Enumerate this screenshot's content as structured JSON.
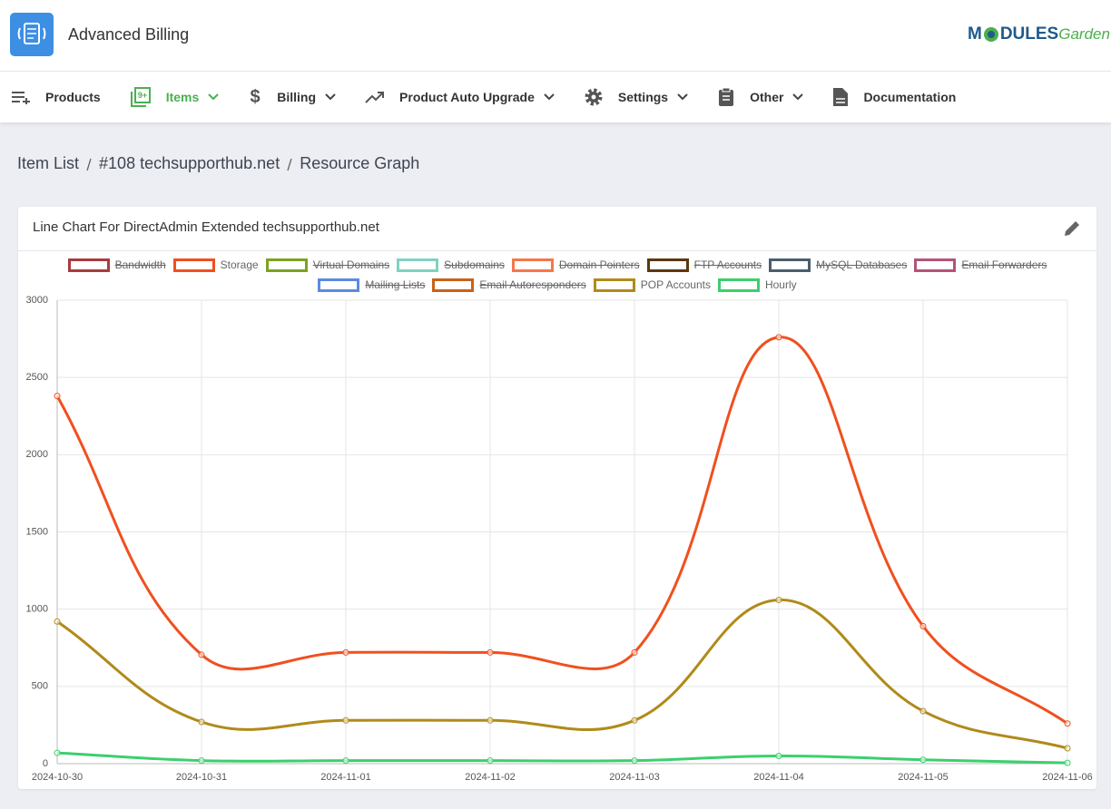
{
  "header": {
    "app_title": "Advanced Billing",
    "logo": [
      "M",
      "DULES",
      "Garden"
    ]
  },
  "nav": [
    "Products",
    "Items",
    "Billing",
    "Product Auto Upgrade",
    "Settings",
    "Other",
    "Documentation"
  ],
  "breadcrumb": [
    "Item List",
    "#108 techsupporthub.net",
    "Resource Graph"
  ],
  "chart_data": {
    "type": "line",
    "title": "Line Chart For DirectAdmin Extended techsupporthub.net",
    "x": [
      "2024-10-30",
      "2024-10-31",
      "2024-11-01",
      "2024-11-02",
      "2024-11-03",
      "2024-11-04",
      "2024-11-05",
      "2024-11-06"
    ],
    "ylim": [
      0,
      3000
    ],
    "yticks": [
      0,
      500,
      1000,
      1500,
      2000,
      2500,
      3000
    ],
    "grid": true,
    "legend": "top",
    "series": [
      {
        "name": "Bandwidth",
        "color": "#a83c3c",
        "hidden": true
      },
      {
        "name": "Storage",
        "color": "#f0501e",
        "values": [
          2380,
          705,
          720,
          720,
          720,
          2760,
          890,
          260
        ]
      },
      {
        "name": "Virtual Domains",
        "color": "#7ba322",
        "hidden": true
      },
      {
        "name": "Subdomains",
        "color": "#7fd3c0",
        "hidden": true
      },
      {
        "name": "Domain Pointers",
        "color": "#f5774a",
        "hidden": true
      },
      {
        "name": "FTP Accounts",
        "color": "#5c3810",
        "hidden": true
      },
      {
        "name": "MySQL Databases",
        "color": "#4a5e6e",
        "hidden": true
      },
      {
        "name": "Email Forwarders",
        "color": "#b5527a",
        "hidden": true
      },
      {
        "name": "Mailing Lists",
        "color": "#5b8be0",
        "hidden": true
      },
      {
        "name": "Email Autoresponders",
        "color": "#c8621a",
        "hidden": true
      },
      {
        "name": "POP Accounts",
        "color": "#b08a1a",
        "values": [
          920,
          270,
          280,
          280,
          280,
          1060,
          340,
          100
        ]
      },
      {
        "name": "Hourly",
        "color": "#3ccf6e",
        "values": [
          70,
          20,
          20,
          20,
          20,
          50,
          25,
          5
        ]
      }
    ]
  }
}
